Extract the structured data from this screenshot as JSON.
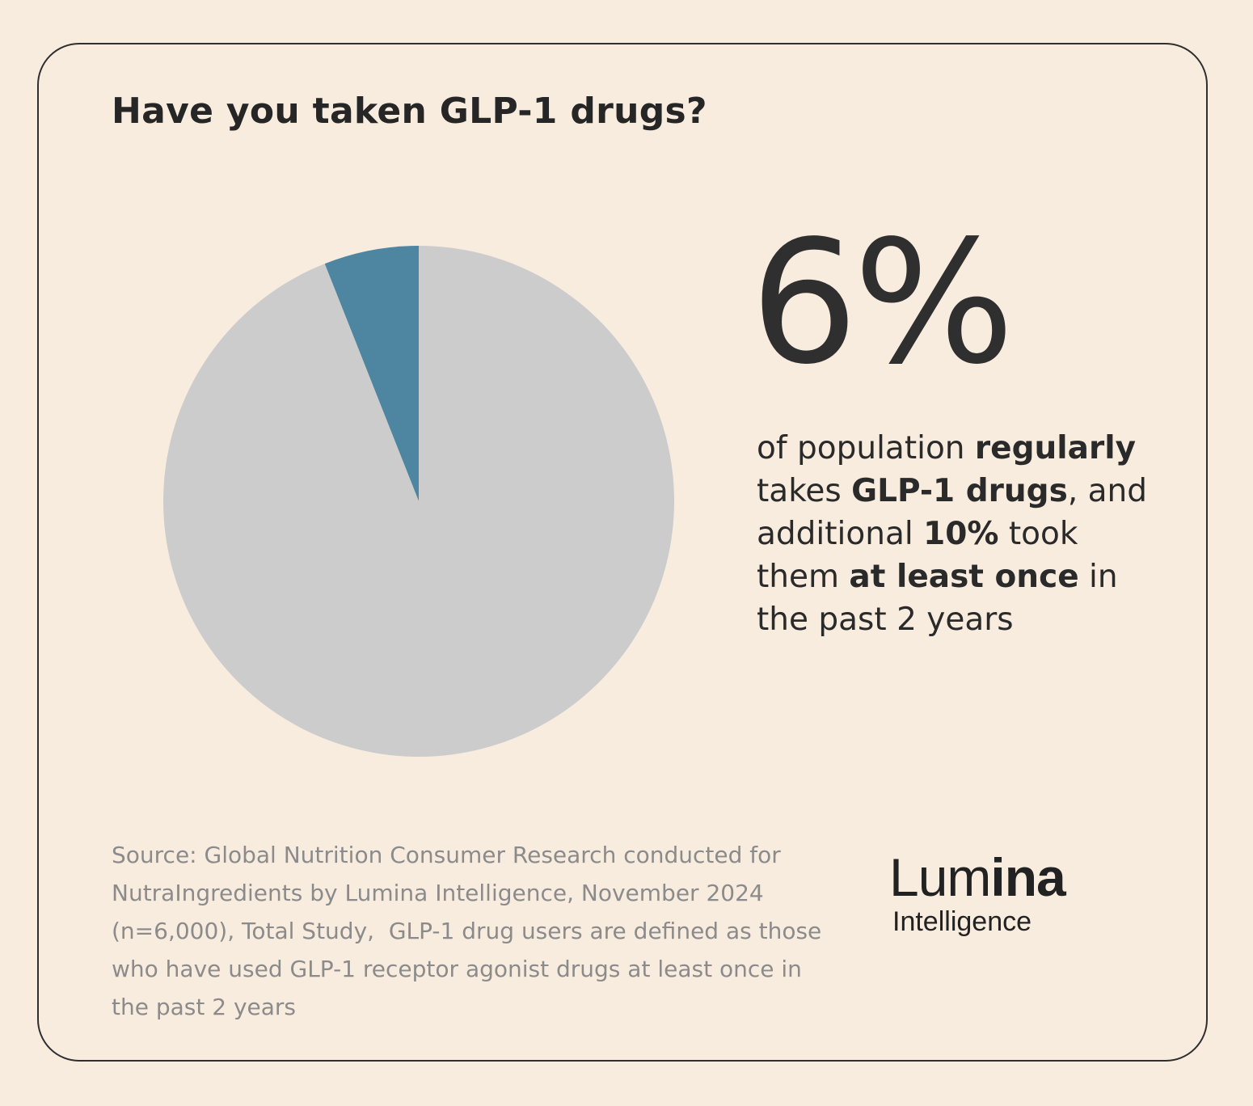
{
  "title": "Have you taken GLP-1 drugs?",
  "chart_data": {
    "type": "pie",
    "slices": [
      {
        "value": 6,
        "color": "#4e86a2"
      },
      {
        "value": 94,
        "color": "#cccccc"
      }
    ],
    "start": "12 o'clock, highlighted slice counter-clockwise"
  },
  "stat": {
    "big_value": "6%",
    "line1_a": "of population ",
    "line1_b": "regularly",
    "line2_a": "takes ",
    "line2_b": "GLP-1 drugs",
    "line2_c": ", and",
    "line3_a": "additional ",
    "line3_b": "10%",
    "line3_c": " took",
    "line4_a": "them ",
    "line4_b": "at least once",
    "line4_c": " in",
    "line5": "the past 2 years"
  },
  "source": {
    "line1": "Source: Global Nutrition Consumer Research conducted for",
    "line2": "NutraIngredients by Lumina Intelligence, November 2024",
    "line3": "(n=6,000), Total Study,  GLP-1 drug users are defined as those",
    "line4": "who have used GLP-1 receptor agonist drugs at least once in",
    "line5": "the past 2 years"
  },
  "logo": {
    "main_light": "Lum",
    "main_heavy": "ina",
    "sub": "Intelligence"
  }
}
